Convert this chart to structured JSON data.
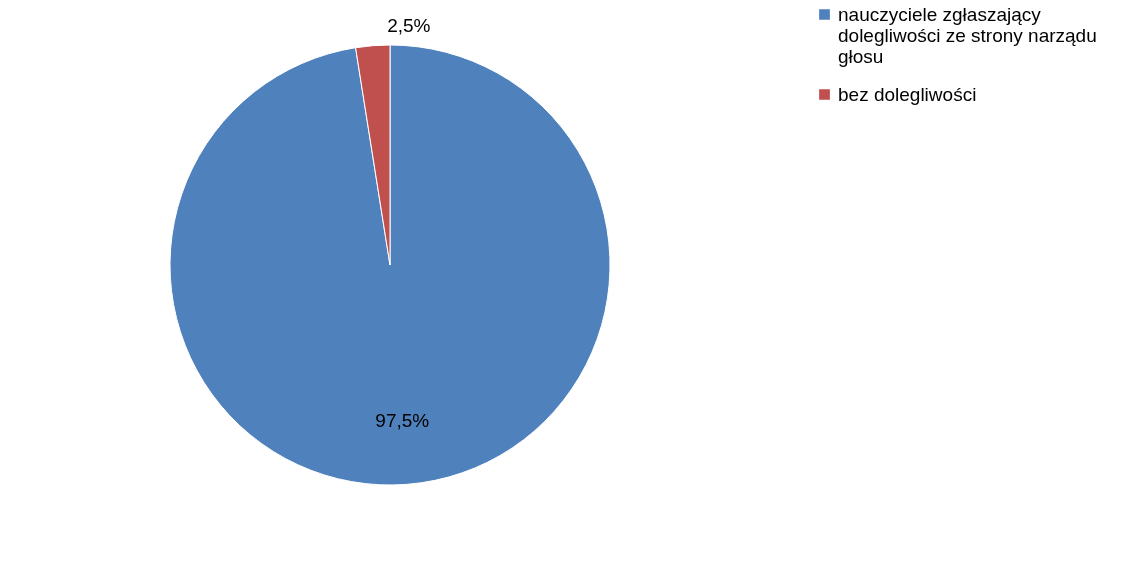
{
  "chart_data": {
    "type": "pie",
    "categories": [
      "nauczyciele zgłaszający dolegliwości ze strony narządu głosu",
      "bez dolegliwości"
    ],
    "values": [
      97.5,
      2.5
    ],
    "colors": [
      "#4f81bd",
      "#c0504d"
    ],
    "value_labels": [
      "97,5%",
      "2,5%"
    ],
    "legend": "right"
  }
}
